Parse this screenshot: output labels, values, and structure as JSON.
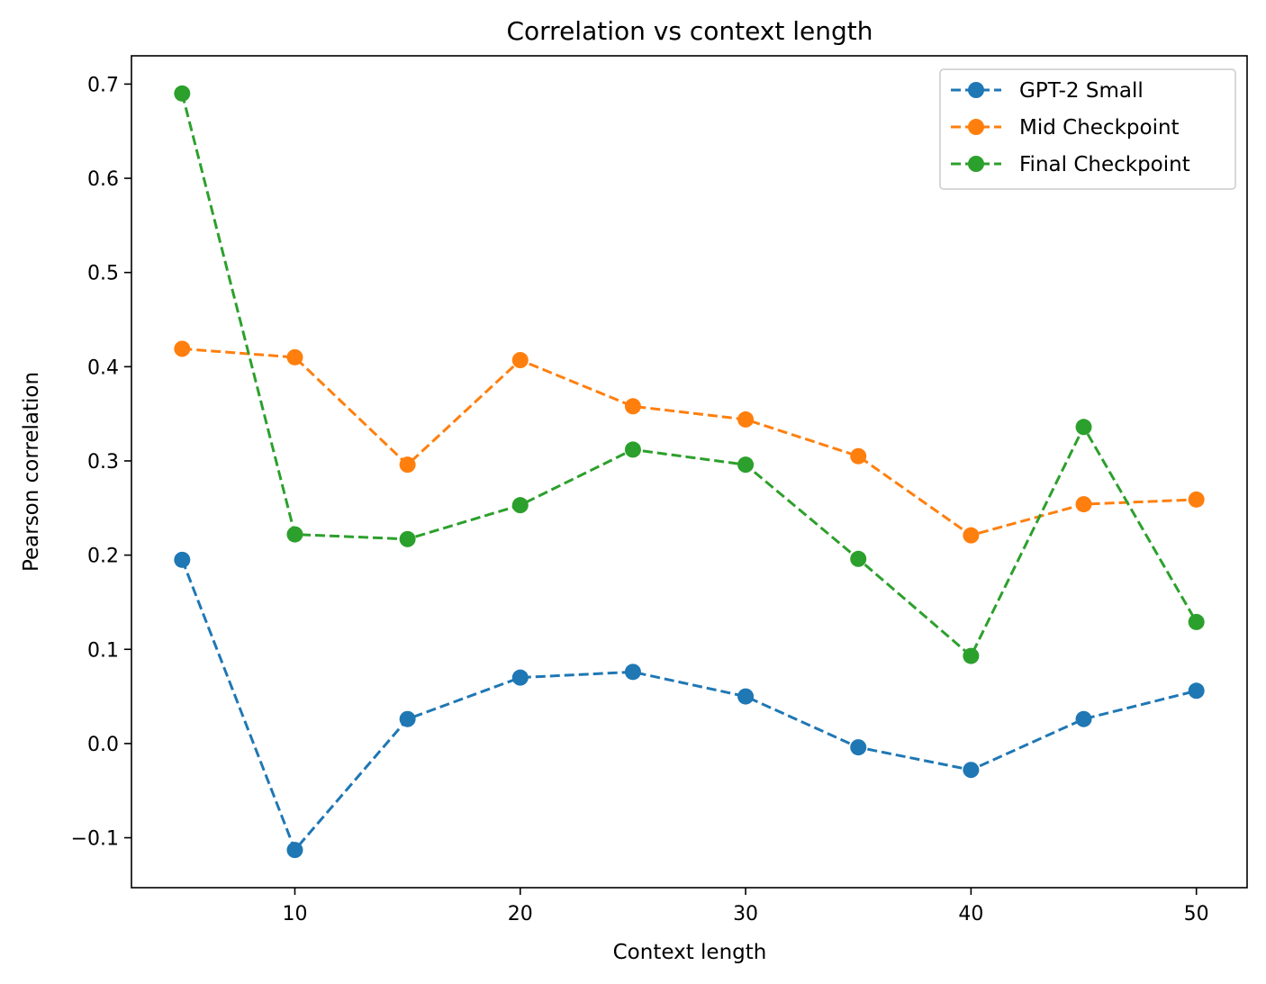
{
  "chart_data": {
    "type": "line",
    "title": "Correlation vs context length",
    "xlabel": "Context length",
    "ylabel": "Pearson correlation",
    "x": [
      5,
      10,
      15,
      20,
      25,
      30,
      35,
      40,
      45,
      50
    ],
    "xlim": [
      2.75,
      52.25
    ],
    "ylim": [
      -0.153,
      0.73
    ],
    "xticks": [
      10,
      20,
      30,
      40,
      50
    ],
    "yticks": [
      -0.1,
      0.0,
      0.1,
      0.2,
      0.3,
      0.4,
      0.5,
      0.6,
      0.7
    ],
    "xtick_labels": [
      "10",
      "20",
      "30",
      "40",
      "50"
    ],
    "ytick_labels": [
      "−0.1",
      "0.0",
      "0.1",
      "0.2",
      "0.3",
      "0.4",
      "0.5",
      "0.6",
      "0.7"
    ],
    "grid": false,
    "legend_position": "top-right",
    "line_style": "dashed",
    "marker": "circle",
    "series": [
      {
        "name": "GPT-2 Small",
        "color": "#1f77b4",
        "values": [
          0.195,
          -0.113,
          0.026,
          0.07,
          0.076,
          0.05,
          -0.004,
          -0.028,
          0.026,
          0.056
        ]
      },
      {
        "name": "Mid Checkpoint",
        "color": "#ff7f0e",
        "values": [
          0.419,
          0.41,
          0.296,
          0.407,
          0.358,
          0.344,
          0.305,
          0.221,
          0.254,
          0.259
        ]
      },
      {
        "name": "Final Checkpoint",
        "color": "#2ca02c",
        "values": [
          0.69,
          0.222,
          0.217,
          0.253,
          0.312,
          0.296,
          0.196,
          0.093,
          0.336,
          0.129
        ]
      }
    ]
  }
}
